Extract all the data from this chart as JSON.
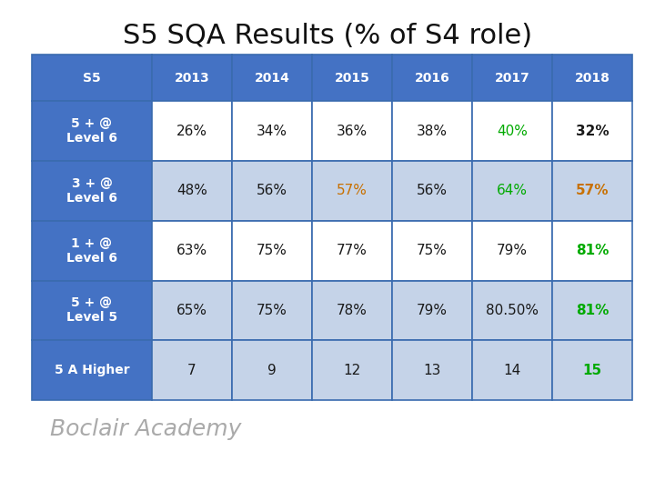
{
  "title": "S5 SQA Results (% of S4 role)",
  "title_fontsize": 22,
  "title_color": "#111111",
  "header_row": [
    "S5",
    "2013",
    "2014",
    "2015",
    "2016",
    "2017",
    "2018"
  ],
  "rows": [
    [
      "5 + @\nLevel 6",
      "26%",
      "34%",
      "36%",
      "38%",
      "40%",
      "32%"
    ],
    [
      "3 + @\nLevel 6",
      "48%",
      "56%",
      "57%",
      "56%",
      "64%",
      "57%"
    ],
    [
      "1 + @\nLevel 6",
      "63%",
      "75%",
      "77%",
      "75%",
      "79%",
      "81%"
    ],
    [
      "5 + @\nLevel 5",
      "65%",
      "75%",
      "78%",
      "79%",
      "80.50%",
      "81%"
    ],
    [
      "5 A Higher",
      "7",
      "9",
      "12",
      "13",
      "14",
      "15"
    ]
  ],
  "data_bg": [
    [
      "white",
      "white",
      "white",
      "white",
      "white",
      "white",
      "white"
    ],
    [
      "row_blue",
      "row_blue",
      "row_blue",
      "row_blue",
      "row_blue",
      "row_blue",
      "row_blue"
    ],
    [
      "white",
      "white",
      "white",
      "white",
      "white",
      "white",
      "white"
    ],
    [
      "row_blue",
      "row_blue",
      "row_blue",
      "row_blue",
      "row_blue",
      "row_blue",
      "row_blue"
    ],
    [
      "row_blue",
      "row_blue",
      "row_blue",
      "row_blue",
      "row_blue",
      "row_blue",
      "row_blue"
    ]
  ],
  "text_colors": [
    [
      "dark",
      "dark",
      "dark",
      "dark",
      "dark",
      "green",
      "dark"
    ],
    [
      "dark",
      "dark",
      "dark",
      "orange",
      "dark",
      "green",
      "orange"
    ],
    [
      "dark",
      "dark",
      "dark",
      "dark",
      "dark",
      "dark",
      "green"
    ],
    [
      "dark",
      "dark",
      "dark",
      "dark",
      "dark",
      "dark",
      "green"
    ],
    [
      "dark",
      "dark",
      "dark",
      "dark",
      "dark",
      "dark",
      "green"
    ]
  ],
  "header_blue": "#4472C4",
  "row_blue": "#C5D3E8",
  "white": "#FFFFFF",
  "dark": "#1A1A1A",
  "green": "#00AA00",
  "orange": "#C87000",
  "border_color": "#3A6BAF",
  "footer_text": "Boclair Academy",
  "footer_fontsize": 18,
  "footer_color": "#AAAAAA",
  "col_widths": [
    1.5,
    1.0,
    1.0,
    1.0,
    1.0,
    1.0,
    1.0
  ]
}
